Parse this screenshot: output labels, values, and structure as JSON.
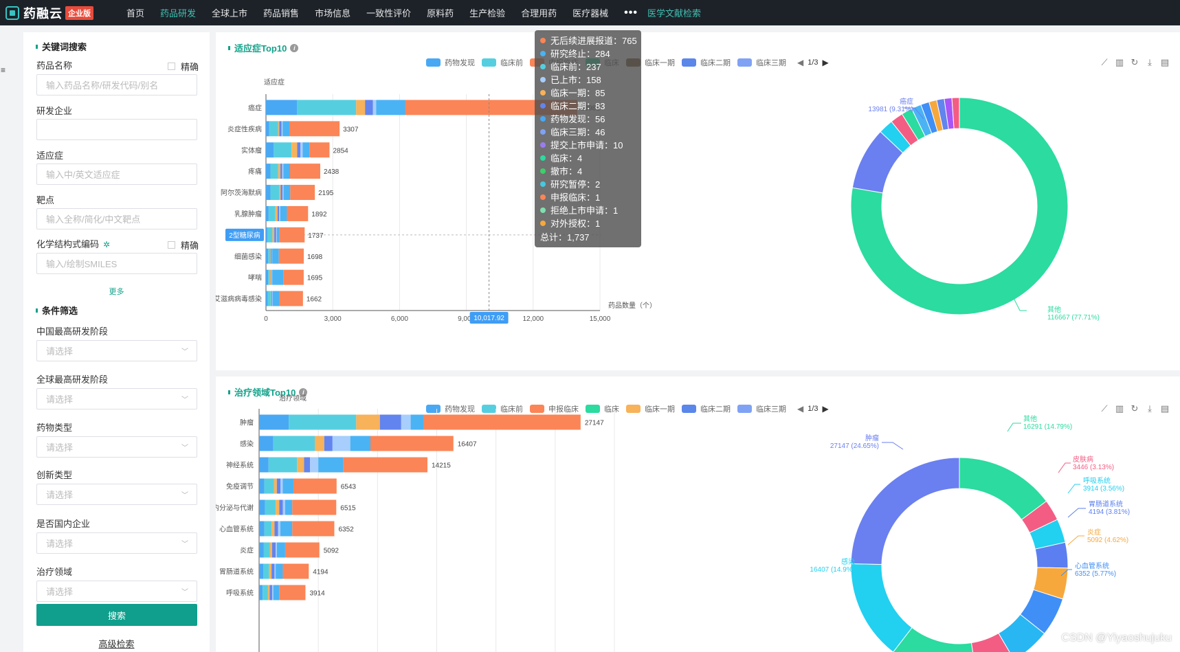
{
  "nav": {
    "logo": "药融云",
    "badge": "企业版",
    "items": [
      "首页",
      "药品研发",
      "全球上市",
      "药品销售",
      "市场信息",
      "一致性评价",
      "原料药",
      "生产检验",
      "合理用药",
      "医疗器械"
    ],
    "more": "•••",
    "special": "医学文献检索"
  },
  "sidebar_menu_icon": "≡",
  "filter": {
    "keyword_title": "关键词搜索",
    "drug_name_label": "药品名称",
    "exact_label": "精确",
    "drug_name_placeholder": "输入药品名称/研发代码/别名",
    "company_label": "研发企业",
    "company_value": "",
    "indication_label": "适应症",
    "indication_placeholder": "输入中/英文适应症",
    "target_label": "靶点",
    "target_placeholder": "输入全称/简化/中文靶点",
    "structure_label": "化学结构式编码",
    "structure_asterisk": "✲",
    "exact_label2": "精确",
    "structure_placeholder": "输入/绘制SMILES",
    "more_link": "更多",
    "condition_title": "条件筛选",
    "cn_stage_label": "中国最高研发阶段",
    "global_stage_label": "全球最高研发阶段",
    "drug_type_label": "药物类型",
    "innovation_label": "创新类型",
    "domestic_label": "是否国内企业",
    "area_label": "治疗领域",
    "select_placeholder": "请选择",
    "search_button": "搜索",
    "advanced_link": "高级检索"
  },
  "colors": {
    "s1": "#49a8f3",
    "s2": "#55cfe0",
    "s3": "#f7b25a",
    "s4": "#6184ee",
    "s5": "#a7cefc",
    "s6": "#4ab3f4",
    "s7": "#fb8556",
    "green": "#2bdb9f",
    "nav_active": "#3ec1b1"
  },
  "chart1": {
    "title": "适应症Top10",
    "legend": [
      {
        "name": "药物发现",
        "color": "#49a8f3"
      },
      {
        "name": "临床前",
        "color": "#55cfe0"
      },
      {
        "name": "申报临床",
        "color": "#fb8556"
      },
      {
        "name": "临床",
        "color": "#2bdb9f"
      },
      {
        "name": "临床一期",
        "color": "#7a5230"
      },
      {
        "name": "临床二期",
        "color": "#5b86ea"
      },
      {
        "name": "临床三期",
        "color": "#7fa2f4"
      }
    ],
    "legend_page": "1/3",
    "toolbox": [
      "line-chart-icon",
      "bar-chart-icon",
      "restore-icon",
      "download-icon",
      "data-view-icon"
    ]
  },
  "chart2": {
    "title": "治疗领域Top10",
    "legend": [
      {
        "name": "药物发现",
        "color": "#49a8f3"
      },
      {
        "name": "临床前",
        "color": "#55cfe0"
      },
      {
        "name": "申报临床",
        "color": "#fb8556"
      },
      {
        "name": "临床",
        "color": "#2bdb9f"
      },
      {
        "name": "临床一期",
        "color": "#f7b25a"
      },
      {
        "name": "临床二期",
        "color": "#5b86ea"
      },
      {
        "name": "临床三期",
        "color": "#7fa2f4"
      }
    ],
    "legend_page": "1/3"
  },
  "chart_data": [
    {
      "type": "bar",
      "orientation": "horizontal",
      "title": "适应症Top10",
      "ylabel": "适应症",
      "xlabel": "药品数量（个）",
      "xlim": [
        0,
        15000
      ],
      "xticks": [
        "0",
        "3,000",
        "6,000",
        "9,000",
        "12,000",
        "15,000"
      ],
      "axis_pointer": "10,017.92",
      "highlight_category": "2型糖尿病",
      "categories": [
        "癌症",
        "炎症性疾病",
        "实体瘤",
        "疼痛",
        "阿尔茨海默病",
        "乳腺肿瘤",
        "2型糖尿病",
        "细菌感染",
        "哮喘",
        "艾滋病病毒感染"
      ],
      "totals": [
        13981,
        3307,
        2854,
        2438,
        2195,
        1892,
        1737,
        1698,
        1695,
        1662
      ],
      "segments": [
        [
          1400,
          2650,
          400,
          350,
          150,
          1300,
          7731
        ],
        [
          150,
          400,
          50,
          100,
          50,
          300,
          2257
        ],
        [
          350,
          800,
          250,
          150,
          100,
          300,
          904
        ],
        [
          200,
          350,
          100,
          80,
          50,
          300,
          1358
        ],
        [
          200,
          400,
          60,
          80,
          50,
          300,
          1105
        ],
        [
          120,
          300,
          100,
          70,
          50,
          300,
          952
        ],
        [
          60,
          230,
          85,
          83,
          30,
          100,
          1149
        ],
        [
          100,
          100,
          20,
          40,
          20,
          300,
          1118
        ],
        [
          100,
          80,
          50,
          20,
          30,
          500,
          915
        ],
        [
          80,
          150,
          20,
          30,
          20,
          300,
          1062
        ]
      ]
    },
    {
      "type": "pie",
      "title": "适应症Top10 占比",
      "labels": [
        "其他",
        "癌症",
        "炎症性疾病",
        "实体瘤",
        "疼痛",
        "阿尔茨海默病",
        "乳腺肿瘤",
        "2型糖尿病",
        "细菌感染",
        "哮喘",
        "艾滋病病毒感染"
      ],
      "values": [
        116667,
        13981,
        3307,
        2854,
        2438,
        2195,
        1892,
        1737,
        1698,
        1695,
        1662
      ],
      "visible_labels": [
        {
          "name": "癌症",
          "value": "13981",
          "pct": "(9.31%)"
        },
        {
          "name": "其他",
          "value": "116667",
          "pct": "(77.71%)"
        }
      ]
    },
    {
      "type": "bar",
      "orientation": "horizontal",
      "title": "治疗领域Top10",
      "ylabel": "治疗领域",
      "categories": [
        "肿瘤",
        "感染",
        "神经系统",
        "免疫调节",
        "内分泌与代谢",
        "心血管系统",
        "炎症",
        "胃肠道系统",
        "呼吸系统"
      ],
      "totals": [
        27147,
        16407,
        14215,
        6543,
        6515,
        6352,
        5092,
        4194,
        3914
      ],
      "xlim": [
        0,
        30000
      ],
      "segments": [
        [
          2500,
          5700,
          2000,
          1800,
          800,
          1100,
          13247
        ],
        [
          1200,
          3500,
          800,
          700,
          1500,
          1700,
          7007
        ],
        [
          800,
          2400,
          600,
          500,
          700,
          2100,
          7115
        ],
        [
          450,
          800,
          250,
          300,
          200,
          900,
          3643
        ],
        [
          500,
          900,
          300,
          300,
          200,
          600,
          3715
        ],
        [
          450,
          600,
          250,
          300,
          200,
          1000,
          3552
        ],
        [
          400,
          500,
          200,
          300,
          100,
          700,
          2892
        ],
        [
          350,
          500,
          200,
          250,
          100,
          600,
          2194
        ],
        [
          300,
          450,
          150,
          200,
          100,
          500,
          2214
        ]
      ]
    },
    {
      "type": "pie",
      "title": "治疗领域 占比",
      "labels": [
        "其他",
        "皮肤病",
        "呼吸系统",
        "胃肠道系统",
        "炎症",
        "心血管系统",
        "内分泌与代谢",
        "免疫调节",
        "神经系统",
        "感染",
        "肿瘤"
      ],
      "values": [
        16291,
        3446,
        3914,
        4194,
        5092,
        6352,
        6515,
        6543,
        14215,
        16407,
        27147
      ],
      "colors": [
        "#2bdb9f",
        "#f35d84",
        "#22d0f0",
        "#5b7ff0",
        "#f7a83c",
        "#3f8ff7",
        "#28b7f2",
        "#f35d84",
        "#2bdb9f",
        "#22d0f0",
        "#6a7ff0"
      ],
      "visible_labels": [
        {
          "name": "其他",
          "value": "16291",
          "pct": "(14.79%)"
        },
        {
          "name": "皮肤病",
          "value": "3446",
          "pct": "(3.13%)"
        },
        {
          "name": "呼吸系统",
          "value": "3914",
          "pct": "(3.56%)"
        },
        {
          "name": "胃肠道系统",
          "value": "4194",
          "pct": "(3.81%)"
        },
        {
          "name": "炎症",
          "value": "5092",
          "pct": "(4.62%)"
        },
        {
          "name": "心血管系统",
          "value": "6352",
          "pct": "(5.77%)"
        },
        {
          "name": "肿瘤",
          "value": "27147",
          "pct": "(24.65%)"
        },
        {
          "name": "感染",
          "value": "16407",
          "pct": "(14.9%)"
        }
      ]
    }
  ],
  "tooltip": {
    "rows": [
      {
        "label": "无后续进展报道：765",
        "color": "#fb8556"
      },
      {
        "label": "研究终止：284",
        "color": "#4ab3f4"
      },
      {
        "label": "临床前：237",
        "color": "#55cfe0"
      },
      {
        "label": "已上市：158",
        "color": "#a7cefc"
      },
      {
        "label": "临床一期：85",
        "color": "#f7b25a"
      },
      {
        "label": "临床二期：83",
        "color": "#6184ee"
      },
      {
        "label": "药物发现：56",
        "color": "#49a8f3"
      },
      {
        "label": "临床三期：46",
        "color": "#7fa2f4"
      },
      {
        "label": "提交上市申请：10",
        "color": "#9a7cf0"
      },
      {
        "label": "临床：4",
        "color": "#2bdb9f"
      },
      {
        "label": "撤市：4",
        "color": "#3ecf6a"
      },
      {
        "label": "研究暂停：2",
        "color": "#46c8e0"
      },
      {
        "label": "申报临床：1",
        "color": "#fb8556"
      },
      {
        "label": "拒绝上市申请：1",
        "color": "#7fe0b0"
      },
      {
        "label": "对外授权：1",
        "color": "#f7a83c"
      }
    ],
    "total": "总计：1,737"
  },
  "watermark": "CSDN @Yiyaoshujuku"
}
